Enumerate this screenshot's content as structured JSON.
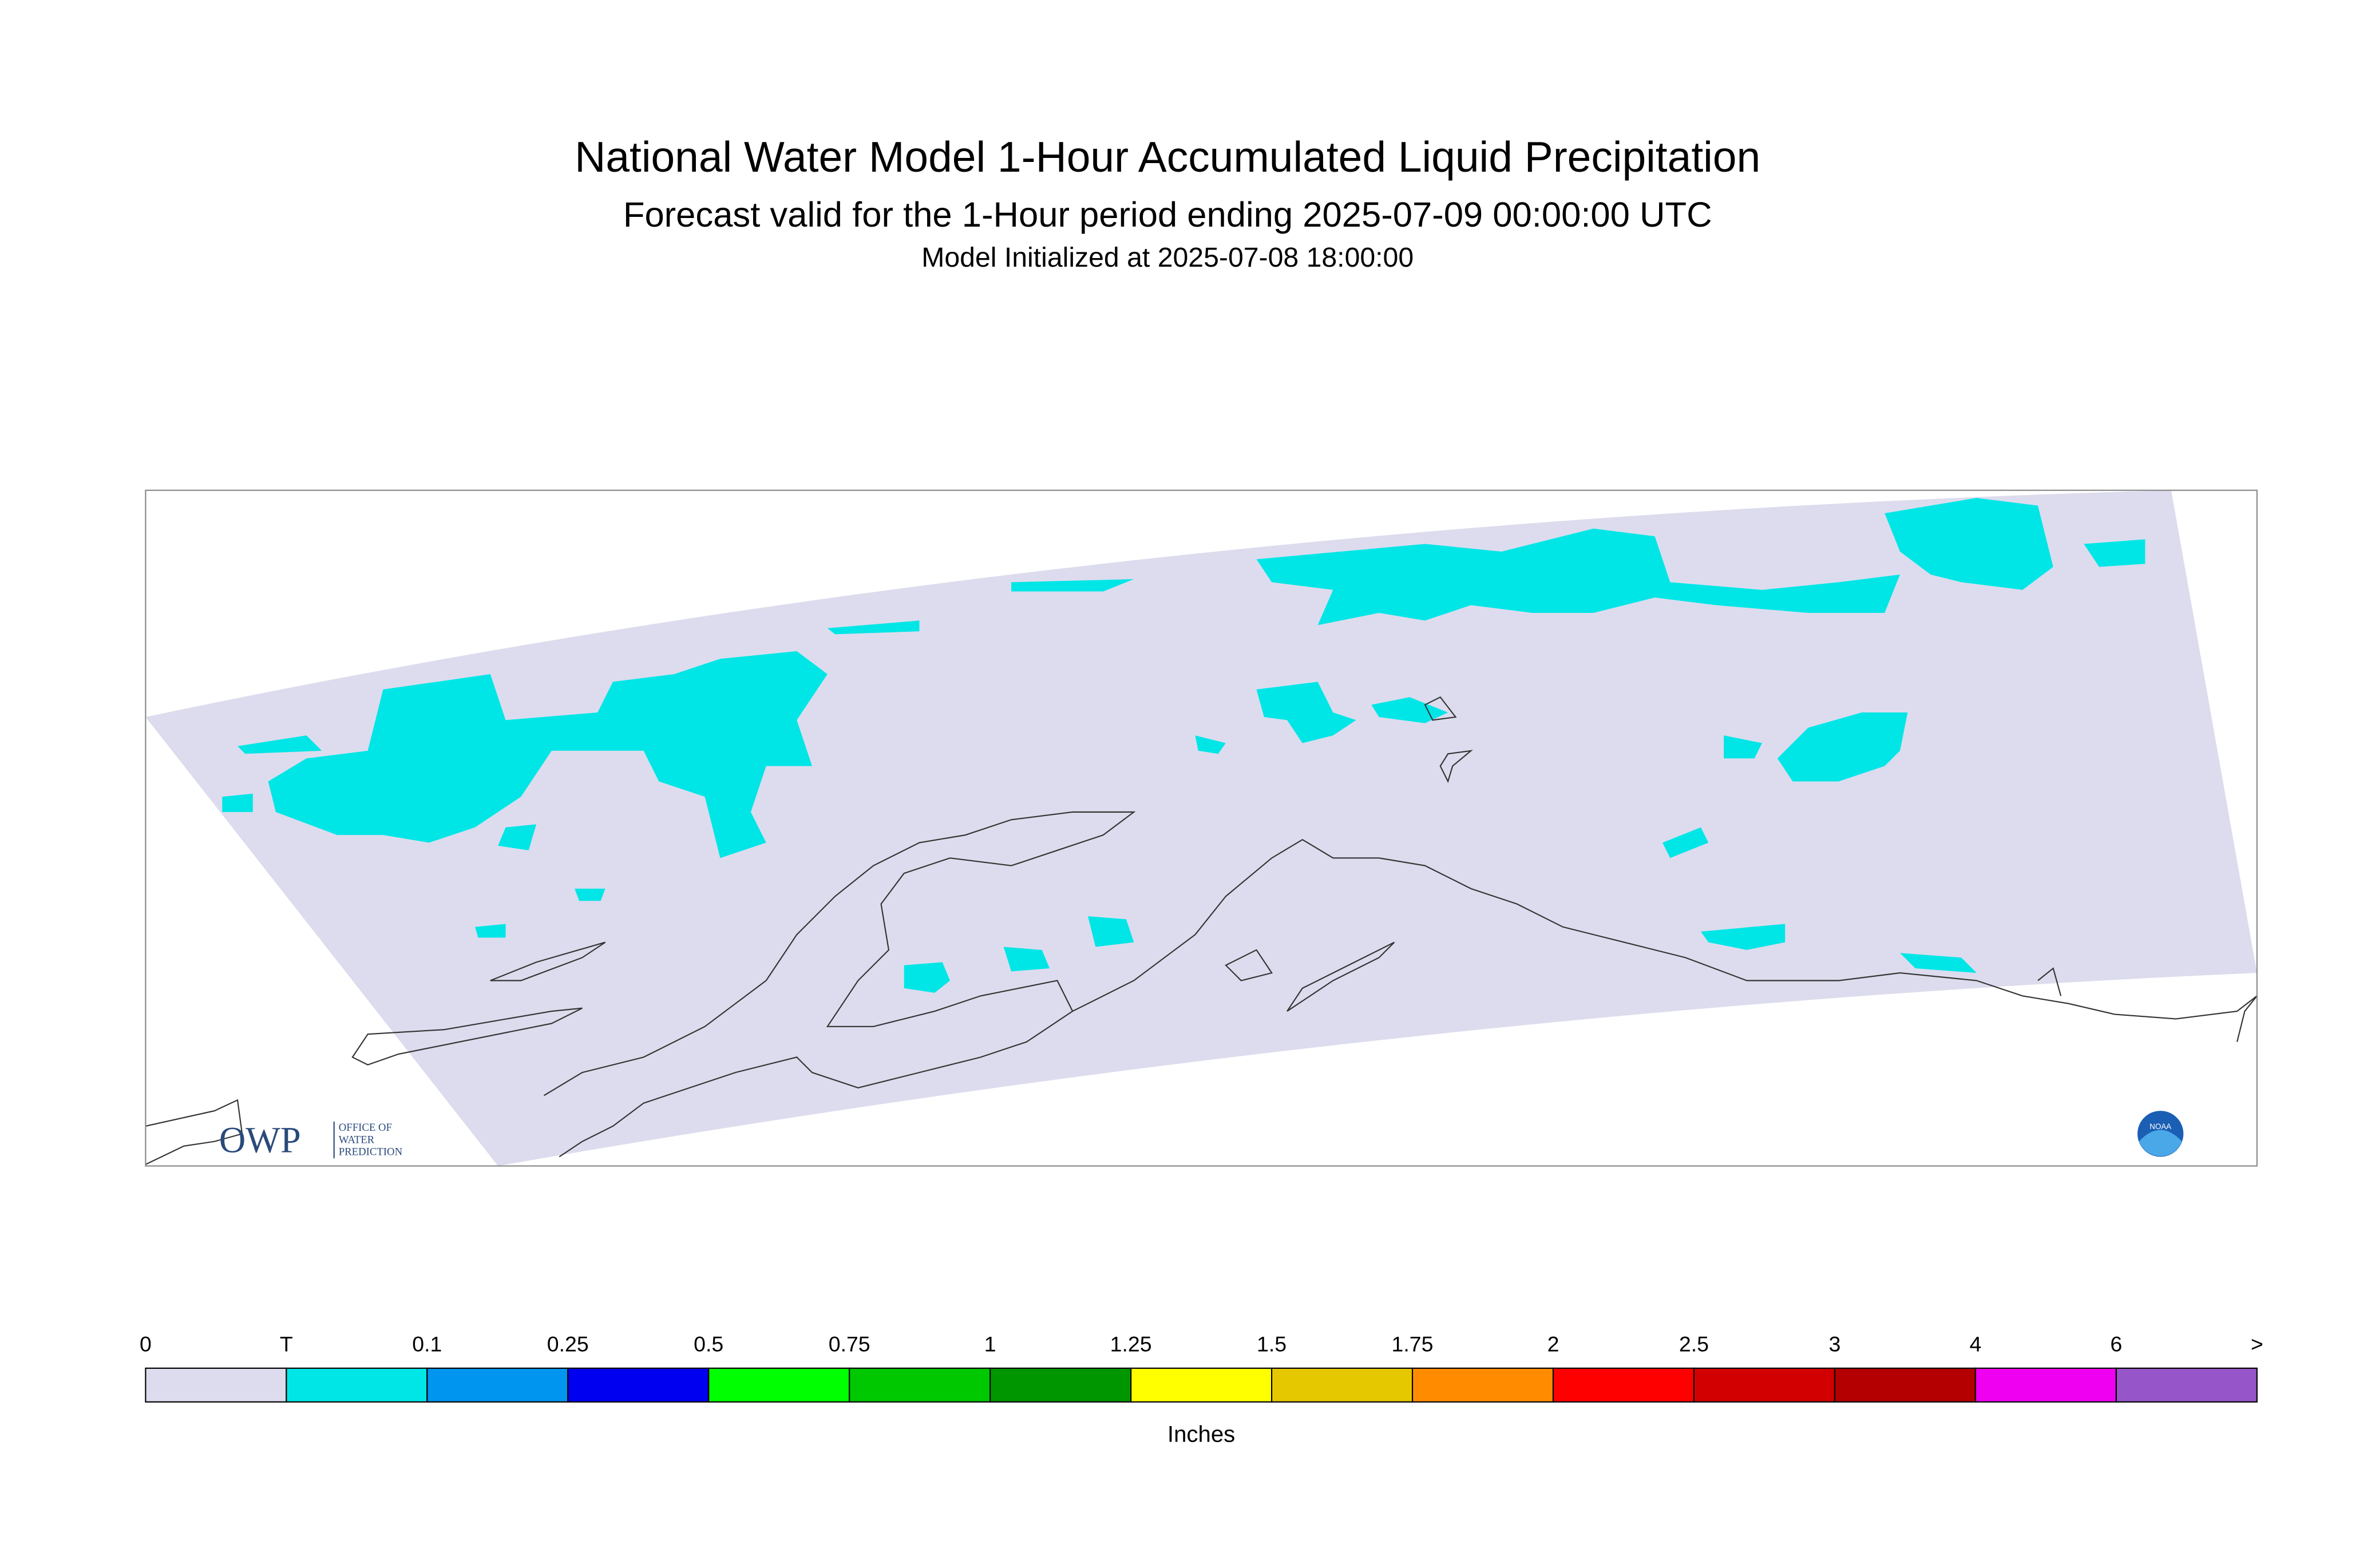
{
  "header": {
    "title": "National Water Model 1-Hour Accumulated Liquid Precipitation",
    "subtitle": "Forecast valid for the 1-Hour period ending 2025-07-09 00:00:00 UTC",
    "initialized": "Model Initialized at 2025-07-08 18:00:00"
  },
  "legend": {
    "unit": "Inches",
    "labels": [
      "0",
      "T",
      "0.1",
      "0.25",
      "0.5",
      "0.75",
      "1",
      "1.25",
      "1.5",
      "1.75",
      "2",
      "2.5",
      "3",
      "4",
      "6",
      ">"
    ],
    "colors": [
      "#dcdcee",
      "#00e6e6",
      "#0096f0",
      "#0000f0",
      "#00ff00",
      "#00c800",
      "#009600",
      "#ffff00",
      "#e6c800",
      "#ff8c00",
      "#ff0000",
      "#d20000",
      "#b40000",
      "#f000f0",
      "#9655c8"
    ]
  },
  "logos": {
    "owp": "OWP",
    "owp_text": [
      "OFFICE OF",
      "WATER",
      "PREDICTION"
    ],
    "noaa": "NOAA"
  }
}
